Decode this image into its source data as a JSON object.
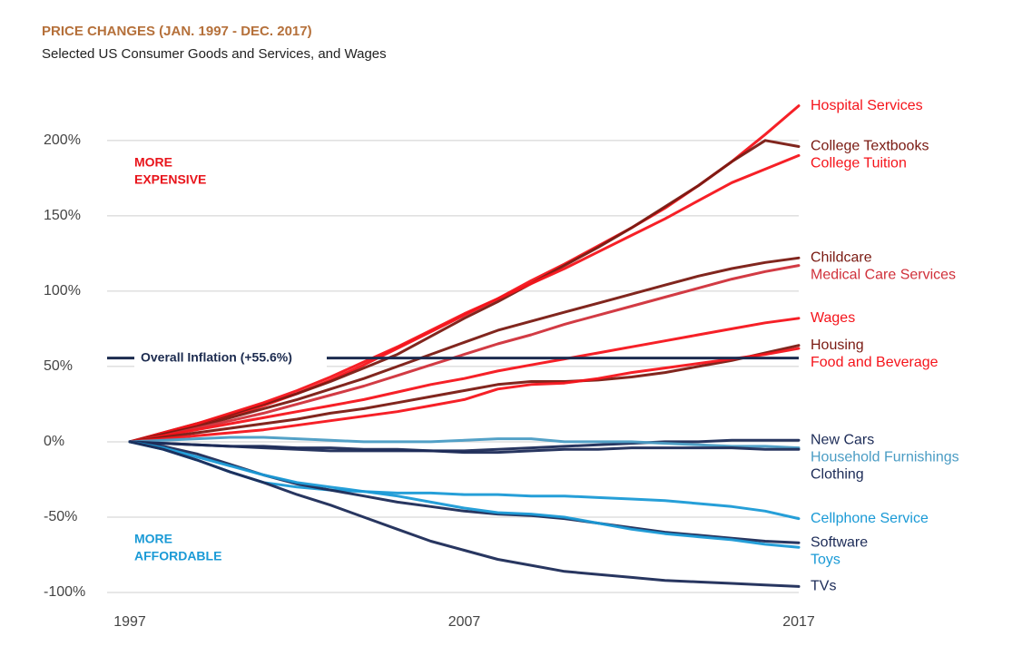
{
  "chart_data": {
    "type": "line",
    "title": "PRICE CHANGES (JAN. 1997 - DEC. 2017)",
    "subtitle": "Selected US Consumer Goods and Services, and Wages",
    "x": [
      1997,
      1998,
      1999,
      2000,
      2001,
      2002,
      2003,
      2004,
      2005,
      2006,
      2007,
      2008,
      2009,
      2010,
      2011,
      2012,
      2013,
      2014,
      2015,
      2016,
      2017
    ],
    "xlim": [
      1997,
      2017
    ],
    "xticks": [
      1997,
      2007,
      2017
    ],
    "ylim": [
      -100,
      230
    ],
    "yticks": [
      {
        "value": -100,
        "label": "-100%"
      },
      {
        "value": -50,
        "label": "-50%"
      },
      {
        "value": 0,
        "label": "0%"
      },
      {
        "value": 50,
        "label": "50%"
      },
      {
        "value": 100,
        "label": "100%"
      },
      {
        "value": 150,
        "label": "150%"
      },
      {
        "value": 200,
        "label": "200%"
      }
    ],
    "grid": true,
    "reference_line": {
      "label": "Overall Inflation (+55.6%)",
      "value": 55.6,
      "color": "#1c2b4f"
    },
    "annotations": [
      {
        "lines": [
          "MORE",
          "EXPENSIVE"
        ],
        "color": "#e8141b",
        "y": 185
      },
      {
        "lines": [
          "MORE",
          "AFFORDABLE"
        ],
        "color": "#1a9ad6",
        "y": -65
      }
    ],
    "series": [
      {
        "name": "Hospital Services",
        "color": "#f5141b",
        "values": [
          0,
          5,
          11,
          17,
          24,
          32,
          41,
          51,
          62,
          73,
          84,
          95,
          107,
          118,
          130,
          142,
          155,
          170,
          186,
          204,
          223
        ]
      },
      {
        "name": "College Textbooks",
        "color": "#7a1a12",
        "values": [
          0,
          6,
          12,
          18,
          25,
          32,
          40,
          49,
          58,
          70,
          82,
          93,
          105,
          117,
          129,
          142,
          156,
          170,
          186,
          200,
          196
        ]
      },
      {
        "name": "College Tuition",
        "color": "#f5141b",
        "values": [
          0,
          6,
          12,
          19,
          26,
          34,
          43,
          53,
          63,
          74,
          85,
          95,
          105,
          115,
          126,
          137,
          148,
          160,
          172,
          181,
          190
        ]
      },
      {
        "name": "Childcare",
        "color": "#7a1a12",
        "values": [
          0,
          5,
          10,
          16,
          22,
          28,
          35,
          42,
          50,
          58,
          66,
          74,
          80,
          86,
          92,
          98,
          104,
          110,
          115,
          119,
          122
        ]
      },
      {
        "name": "Medical Care Services",
        "color": "#d0303a",
        "values": [
          0,
          4,
          9,
          14,
          19,
          25,
          31,
          37,
          44,
          51,
          58,
          65,
          71,
          78,
          84,
          90,
          96,
          102,
          108,
          113,
          117
        ]
      },
      {
        "name": "Wages",
        "color": "#f5141b",
        "values": [
          0,
          4,
          8,
          12,
          16,
          20,
          24,
          28,
          33,
          38,
          42,
          47,
          51,
          55,
          59,
          63,
          67,
          71,
          75,
          79,
          82
        ]
      },
      {
        "name": "Housing",
        "color": "#7a1a12",
        "values": [
          0,
          3,
          6,
          9,
          12,
          15,
          19,
          22,
          26,
          30,
          34,
          38,
          40,
          40,
          41,
          43,
          46,
          50,
          54,
          59,
          64
        ]
      },
      {
        "name": "Food and Beverage",
        "color": "#f5141b",
        "values": [
          0,
          2,
          4,
          6,
          8,
          11,
          14,
          17,
          20,
          24,
          28,
          35,
          38,
          39,
          42,
          46,
          49,
          52,
          55,
          58,
          62
        ]
      },
      {
        "name": "New Cars",
        "color": "#1c2b57",
        "values": [
          0,
          -1,
          -2,
          -3,
          -3,
          -4,
          -4,
          -5,
          -5,
          -6,
          -6,
          -5,
          -4,
          -3,
          -2,
          -1,
          0,
          0,
          1,
          1,
          1
        ]
      },
      {
        "name": "Household Furnishings",
        "color": "#4a9cc4",
        "values": [
          0,
          1,
          2,
          3,
          3,
          2,
          1,
          0,
          0,
          0,
          1,
          2,
          2,
          0,
          0,
          0,
          -1,
          -2,
          -3,
          -3,
          -4
        ]
      },
      {
        "name": "Clothing",
        "color": "#1c2b57",
        "values": [
          0,
          -1,
          -2,
          -3,
          -4,
          -5,
          -6,
          -6,
          -6,
          -6,
          -7,
          -7,
          -6,
          -5,
          -5,
          -4,
          -4,
          -4,
          -4,
          -5,
          -5
        ]
      },
      {
        "name": "Cellphone Service",
        "color": "#1a9ad6",
        "values": [
          0,
          -5,
          -12,
          -20,
          -27,
          -30,
          -32,
          -33,
          -34,
          -34,
          -35,
          -35,
          -36,
          -36,
          -37,
          -38,
          -39,
          -41,
          -43,
          -46,
          -51
        ]
      },
      {
        "name": "Software",
        "color": "#1c2b57",
        "values": [
          0,
          -3,
          -8,
          -15,
          -22,
          -28,
          -32,
          -36,
          -40,
          -43,
          -46,
          -48,
          -49,
          -51,
          -54,
          -57,
          -60,
          -62,
          -64,
          -66,
          -67
        ]
      },
      {
        "name": "Toys",
        "color": "#1a9ad6",
        "values": [
          0,
          -4,
          -10,
          -16,
          -22,
          -27,
          -30,
          -33,
          -36,
          -40,
          -44,
          -47,
          -48,
          -50,
          -54,
          -58,
          -61,
          -63,
          -65,
          -68,
          -70
        ]
      },
      {
        "name": "TVs",
        "color": "#1c2b57",
        "values": [
          0,
          -5,
          -12,
          -20,
          -27,
          -35,
          -42,
          -50,
          -58,
          -66,
          -72,
          -78,
          -82,
          -86,
          -88,
          -90,
          -92,
          -93,
          -94,
          -95,
          -96
        ]
      }
    ]
  }
}
